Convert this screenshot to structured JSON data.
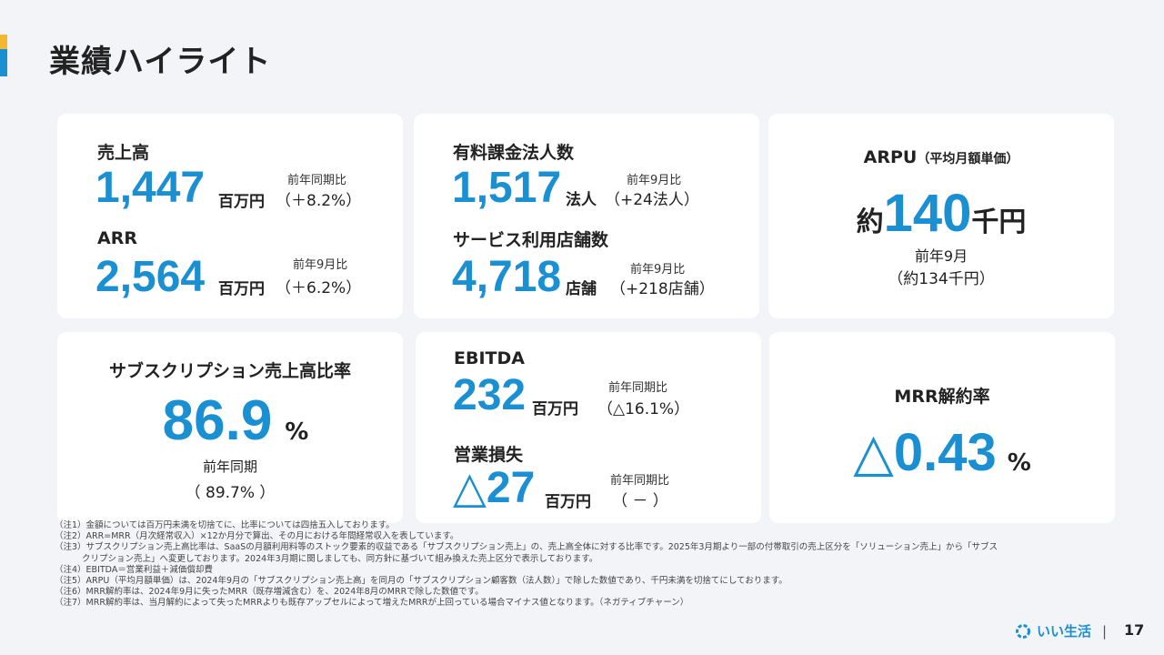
{
  "title": "業績ハイライト",
  "colors": {
    "accent_blue": "#1a8fd1",
    "accent_yellow": "#f4b731",
    "background": "#f2f4f7"
  },
  "card1": {
    "label1": "売上高",
    "value1": "1,447",
    "unit1": "百万円",
    "cmp_head1": "前年同期比",
    "cmp_val1": "（＋8.2%）",
    "label2": "ARR",
    "value2": "2,564",
    "unit2": "百万円",
    "cmp_head2": "前年9月比",
    "cmp_val2": "（＋6.2%）"
  },
  "card2": {
    "label1": "有料課金法人数",
    "value1": "1,517",
    "unit1": "法人",
    "cmp_head1": "前年9月比",
    "cmp_val1": "（+24法人）",
    "label2": "サービス利用店舗数",
    "value2": "4,718",
    "unit2": "店舗",
    "cmp_head2": "前年9月比",
    "cmp_val2": "（+218店舗）"
  },
  "card3": {
    "label_main": "ARPU",
    "label_sub": "（平均月額単価）",
    "prefix": "約",
    "value": "140",
    "unit": "千円",
    "cmp_head": "前年9月",
    "cmp_val": "（約134千円）"
  },
  "card4": {
    "label": "サブスクリプション売上高比率",
    "value": "86.9",
    "unit": "%",
    "cmp_head": "前年同期",
    "cmp_val": "（ 89.7% ）"
  },
  "card5": {
    "label1": "EBITDA",
    "value1": "232",
    "unit1": "百万円",
    "cmp_head1": "前年同期比",
    "cmp_val1": "（△16.1%）",
    "label2": "営業損失",
    "value2": "△27",
    "unit2": "百万円",
    "cmp_head2": "前年同期比",
    "cmp_val2": "（ － ）"
  },
  "card6": {
    "label": "MRR解約率",
    "value": "△0.43",
    "unit": "%"
  },
  "notes": [
    "（注1）金額については百万円未満を切捨てに、比率については四捨五入しております。",
    "（注2）ARR=MRR（月次経常収入）×12か月分で算出、その月における年間経常収入を表しています。",
    "（注3）サブスクリプション売上高比率は、SaaSの月額利用料等のストック要素的収益である「サブスクリプション売上」の、売上高全体に対する比率です。2025年3月期より一部の付帯取引の売上区分を「ソリューション売上」から「サブス",
    "クリプション売上」へ変更しております。2024年3月期に関しましても、同方針に基づいて組み換えた売上区分で表示しております。",
    "（注4）EBITDA＝営業利益＋減価償却費",
    "（注5）ARPU（平均月額単価）は、2024年9月の「サブスクリプション売上高」を同月の「サブスクリプション顧客数（法人数）」で除した数値であり、千円未満を切捨てにしております。",
    "（注6）MRR解約率は、2024年9月に失ったMRR（既存増減含む）を、2024年8月のMRRで除した数値です。",
    "（注7）MRR解約率は、当月解約によって失ったMRRよりも既存アップセルによって増えたMRRが上回っている場合マイナス値となります。（ネガティブチャーン）"
  ],
  "footer": {
    "logo_text": "いい生活",
    "page_number": "17",
    "logo_icon": "logo-mark-icon"
  }
}
